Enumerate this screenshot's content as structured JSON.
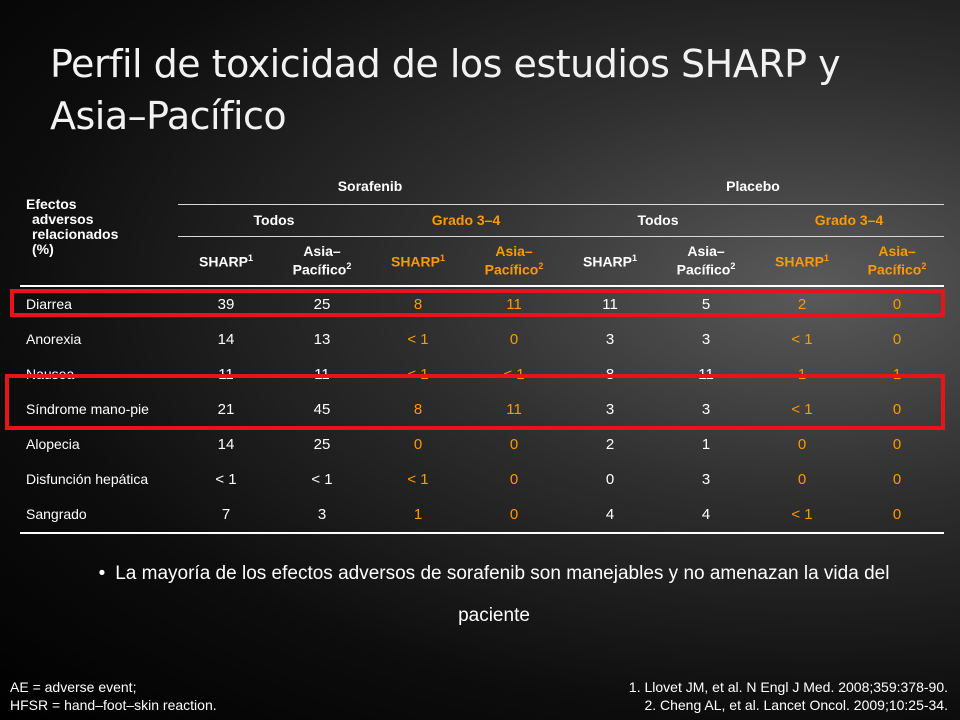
{
  "title": "Perfil de toxicidad de los estudios SHARP y Asia–Pacífico",
  "table": {
    "effect_header": [
      "Efectos",
      "adversos",
      "relacionados",
      "(%)"
    ],
    "groups": [
      "Sorafenib",
      "Placebo"
    ],
    "subgroups": [
      "Todos",
      "Grado 3–4",
      "Todos",
      "Grado 3–4"
    ],
    "studies": [
      "SHARP",
      "Asia–Pacífico",
      "SHARP",
      "Asia–Pacífico",
      "SHARP",
      "Asia–Pacífico",
      "SHARP",
      "Asia–Pacífico"
    ],
    "study_sups": [
      "1",
      "2",
      "1",
      "2",
      "1",
      "2",
      "1",
      "2"
    ],
    "rows": [
      {
        "name": "Diarrea",
        "values": [
          "39",
          "25",
          "8",
          "11",
          "11",
          "5",
          "2",
          "0"
        ]
      },
      {
        "name": "Anorexia",
        "values": [
          "14",
          "13",
          "< 1",
          "0",
          "3",
          "3",
          "< 1",
          "0"
        ]
      },
      {
        "name": "Nausea",
        "values": [
          "11",
          "11",
          "< 1",
          "< 1",
          "8",
          "11",
          "1",
          "1"
        ]
      },
      {
        "name": "Síndrome mano-pie",
        "values": [
          "21",
          "45",
          "8",
          "11",
          "3",
          "3",
          "< 1",
          "0"
        ]
      },
      {
        "name": "Alopecia",
        "values": [
          "14",
          "25",
          "0",
          "0",
          "2",
          "1",
          "0",
          "0"
        ]
      },
      {
        "name": "Disfunción hepática",
        "values": [
          "< 1",
          "< 1",
          "< 1",
          "0",
          "0",
          "3",
          "0",
          "0"
        ]
      },
      {
        "name": "Sangrado",
        "values": [
          "7",
          "3",
          "1",
          "0",
          "4",
          "4",
          "< 1",
          "0"
        ]
      }
    ]
  },
  "bullet": "La mayoría de los efectos adversos de sorafenib son manejables y no amenazan la vida del paciente",
  "footnote_left": [
    "AE = adverse event;",
    "HFSR = hand–foot–skin reaction."
  ],
  "footnote_right": [
    "1. Llovet JM, et al. N Engl J Med. 2008;359:378-90.",
    "2. Cheng AL, et al. Lancet Oncol. 2009;10:25-34."
  ],
  "colors": {
    "grade_columns": "#ff9900",
    "highlight_box": "#e8141a"
  }
}
